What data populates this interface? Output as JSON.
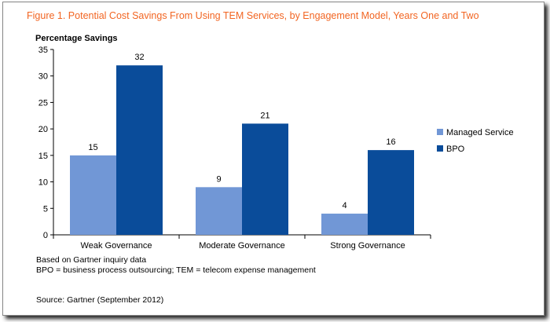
{
  "figure_title": "Figure 1. Potential Cost Savings From Using TEM Services, by Engagement Model, Years One and Two",
  "chart_data": {
    "type": "bar",
    "title": "Figure 1. Potential Cost Savings From Using TEM Services, by Engagement Model, Years One and Two",
    "ylabel": "Percentage Savings",
    "xlabel": "",
    "categories": [
      "Weak Governance",
      "Moderate Governance",
      "Strong Governance"
    ],
    "series": [
      {
        "name": "Managed Service",
        "values": [
          15,
          9,
          4
        ],
        "color": "#7197d6"
      },
      {
        "name": "BPO",
        "values": [
          32,
          21,
          16
        ],
        "color": "#0a4c9a"
      }
    ],
    "ylim": [
      0,
      35
    ],
    "yticks": [
      0,
      5,
      10,
      15,
      20,
      25,
      30,
      35
    ],
    "grid": false,
    "legend": "right",
    "data_labels": true
  },
  "notes": {
    "line1": "Based on Gartner inquiry data",
    "line2": "BPO = business process outsourcing; TEM = telecom expense management"
  },
  "source": "Source: Gartner (September 2012)",
  "colors": {
    "title": "#f26522",
    "axis": "#000000"
  }
}
